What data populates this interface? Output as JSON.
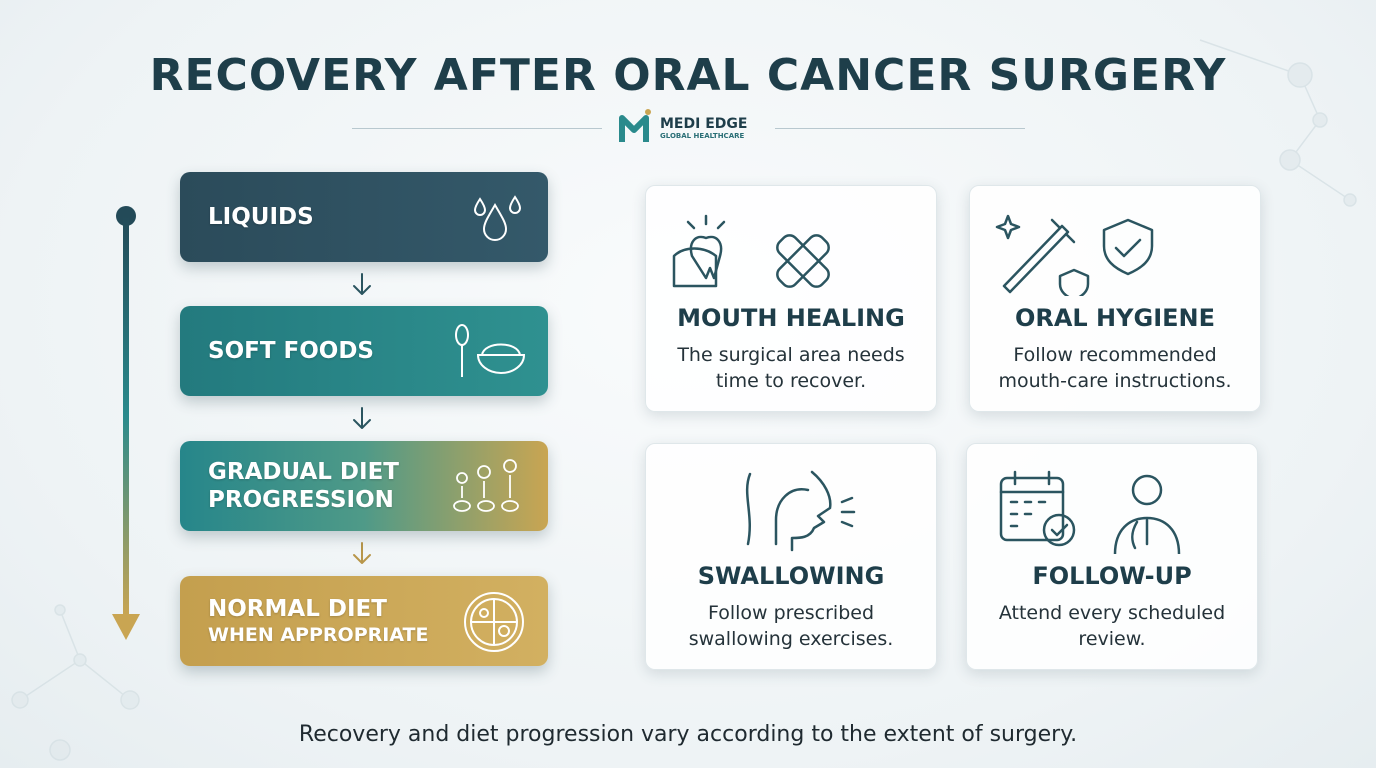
{
  "header": {
    "title": "RECOVERY AFTER ORAL CANCER SURGERY",
    "brand": "MEDI EDGE",
    "brand_subtitle": "GLOBAL HEALTHCARE"
  },
  "stages": [
    {
      "lines": [
        "LIQUIDS"
      ]
    },
    {
      "lines": [
        "SOFT FOODS"
      ]
    },
    {
      "lines": [
        "GRADUAL DIET",
        "PROGRESSION"
      ]
    },
    {
      "lines": [
        "NORMAL DIET",
        "WHEN APPROPRIATE"
      ]
    }
  ],
  "cards": [
    {
      "title": "MOUTH HEALING",
      "text": "The surgical area needs time to recover."
    },
    {
      "title": "ORAL HYGIENE",
      "text": "Follow recommended mouth-care instructions."
    },
    {
      "title": "SWALLOWING",
      "text": "Follow prescribed swallowing exercises."
    },
    {
      "title": "FOLLOW-UP",
      "text": "Attend every scheduled review."
    }
  ],
  "footer": {
    "note": "Recovery and diet progression vary according to the extent of surgery."
  }
}
